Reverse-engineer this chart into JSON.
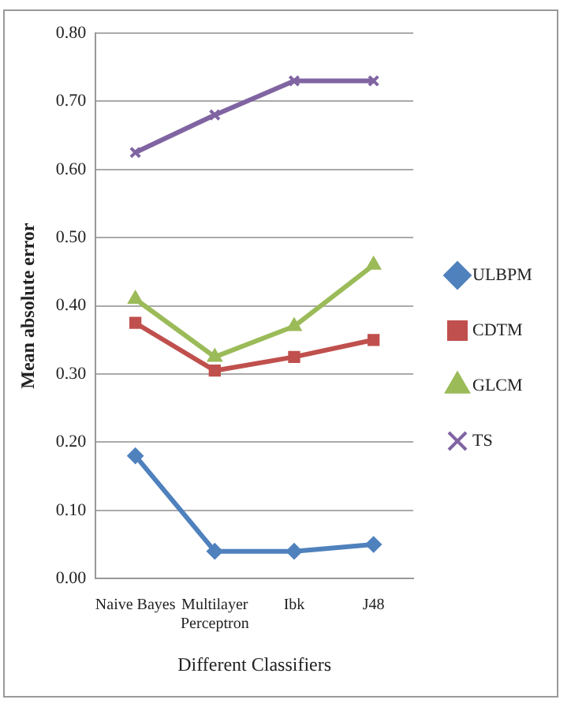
{
  "chart_data": {
    "type": "line",
    "xlabel": "Different Classifiers",
    "ylabel": "Mean absolute error",
    "categories": [
      "Naive Bayes",
      "Multilayer Perceptron",
      "Ibk",
      "J48"
    ],
    "series": [
      {
        "name": "ULBPM",
        "color": "#4f81bd",
        "marker": "diamond",
        "values": [
          0.18,
          0.04,
          0.04,
          0.05
        ]
      },
      {
        "name": "CDTM",
        "color": "#c0504d",
        "marker": "square",
        "values": [
          0.375,
          0.305,
          0.325,
          0.35
        ]
      },
      {
        "name": "GLCM",
        "color": "#9bbb59",
        "marker": "triangle",
        "values": [
          0.41,
          0.325,
          0.37,
          0.46
        ]
      },
      {
        "name": "TS",
        "color": "#8064a2",
        "marker": "cross",
        "values": [
          0.625,
          0.68,
          0.73,
          0.73
        ]
      }
    ],
    "ylim": [
      0,
      0.8
    ],
    "yticks": [
      {
        "value": 0,
        "label": "0.00"
      },
      {
        "value": 0.1,
        "label": "0.10"
      },
      {
        "value": 0.2,
        "label": "0.20"
      },
      {
        "value": 0.3,
        "label": "0.30"
      },
      {
        "value": 0.4,
        "label": "0.40"
      },
      {
        "value": 0.5,
        "label": "0.50"
      },
      {
        "value": 0.6,
        "label": "0.60"
      },
      {
        "value": 0.7,
        "label": "0.70"
      },
      {
        "value": 0.8,
        "label": "0.80"
      }
    ],
    "grid": "y",
    "legend": "right"
  }
}
